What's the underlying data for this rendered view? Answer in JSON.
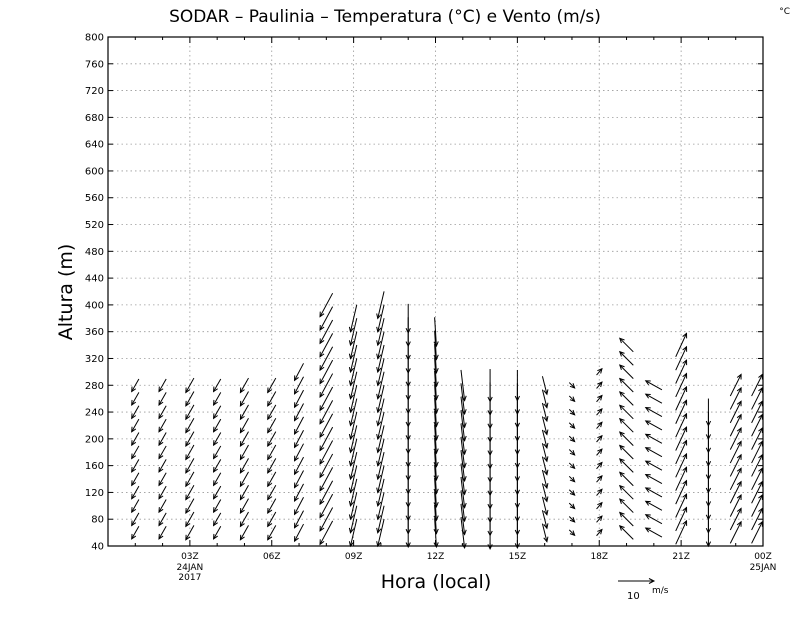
{
  "title": "SODAR  –  Paulinia  –  Temperatura (°C) e Vento (m/s)",
  "corner_unit": "°C",
  "chart_data": {
    "type": "wind-barb-profile",
    "ylabel": "Altura (m)",
    "xlabel": "Hora (local)",
    "ylim": [
      40,
      800
    ],
    "y_ticks": [
      40,
      80,
      120,
      160,
      200,
      240,
      280,
      320,
      360,
      400,
      440,
      480,
      520,
      560,
      600,
      640,
      680,
      720,
      760,
      800
    ],
    "xlim": [
      0,
      24
    ],
    "x_ticks": [
      {
        "x": 3,
        "label": "03Z",
        "sub": [
          "24JAN",
          "2017"
        ]
      },
      {
        "x": 6,
        "label": "06Z",
        "sub": []
      },
      {
        "x": 9,
        "label": "09Z",
        "sub": []
      },
      {
        "x": 12,
        "label": "12Z",
        "sub": []
      },
      {
        "x": 15,
        "label": "15Z",
        "sub": []
      },
      {
        "x": 18,
        "label": "18Z",
        "sub": []
      },
      {
        "x": 21,
        "label": "21Z",
        "sub": []
      },
      {
        "x": 24,
        "label": "00Z",
        "sub": [
          "25JAN"
        ]
      }
    ],
    "grid": true,
    "reference_vector": {
      "value": 10,
      "unit": "m/s"
    },
    "profiles": [
      {
        "hour": 1,
        "top": 280,
        "u": -0.8,
        "v": -1.4
      },
      {
        "hour": 2,
        "top": 280,
        "u": -0.8,
        "v": -1.4
      },
      {
        "hour": 3,
        "top": 290,
        "u": -0.9,
        "v": -1.6
      },
      {
        "hour": 4,
        "top": 280,
        "u": -0.8,
        "v": -1.4
      },
      {
        "hour": 5,
        "top": 290,
        "u": -0.9,
        "v": -1.6
      },
      {
        "hour": 6,
        "top": 290,
        "u": -0.9,
        "v": -1.6
      },
      {
        "hour": 7,
        "top": 300,
        "u": -1.0,
        "v": -1.9
      },
      {
        "hour": 8,
        "top": 400,
        "u": -1.4,
        "v": -2.6
      },
      {
        "hour": 9,
        "top": 390,
        "u": -0.7,
        "v": -3.0
      },
      {
        "hour": 10,
        "top": 400,
        "u": -0.7,
        "v": -3.0
      },
      {
        "hour": 11,
        "top": 380,
        "u": 0.0,
        "v": -3.2
      },
      {
        "hour": 12,
        "top": 360,
        "u": 0.2,
        "v": -3.2
      },
      {
        "hour": 13,
        "top": 280,
        "u": 0.4,
        "v": -3.4
      },
      {
        "hour": 14,
        "top": 280,
        "u": 0.0,
        "v": -3.6
      },
      {
        "hour": 15,
        "top": 290,
        "u": 0.0,
        "v": -3.4
      },
      {
        "hour": 16,
        "top": 280,
        "u": 0.5,
        "v": -2.0
      },
      {
        "hour": 17,
        "top": 280,
        "u": 0.6,
        "v": -0.6
      },
      {
        "hour": 18,
        "top": 300,
        "u": 0.6,
        "v": 0.7
      },
      {
        "hour": 19,
        "top": 350,
        "u": -1.5,
        "v": 1.5
      },
      {
        "hour": 20,
        "top": 280,
        "u": -1.8,
        "v": 1.0
      },
      {
        "hour": 21,
        "top": 340,
        "u": 1.2,
        "v": 2.6
      },
      {
        "hour": 22,
        "top": 240,
        "u": 0.0,
        "v": -3.0
      },
      {
        "hour": 23,
        "top": 280,
        "u": 1.2,
        "v": 2.4
      },
      {
        "hour": 24,
        "top": 280,
        "u": 1.2,
        "v": 2.4
      }
    ]
  }
}
